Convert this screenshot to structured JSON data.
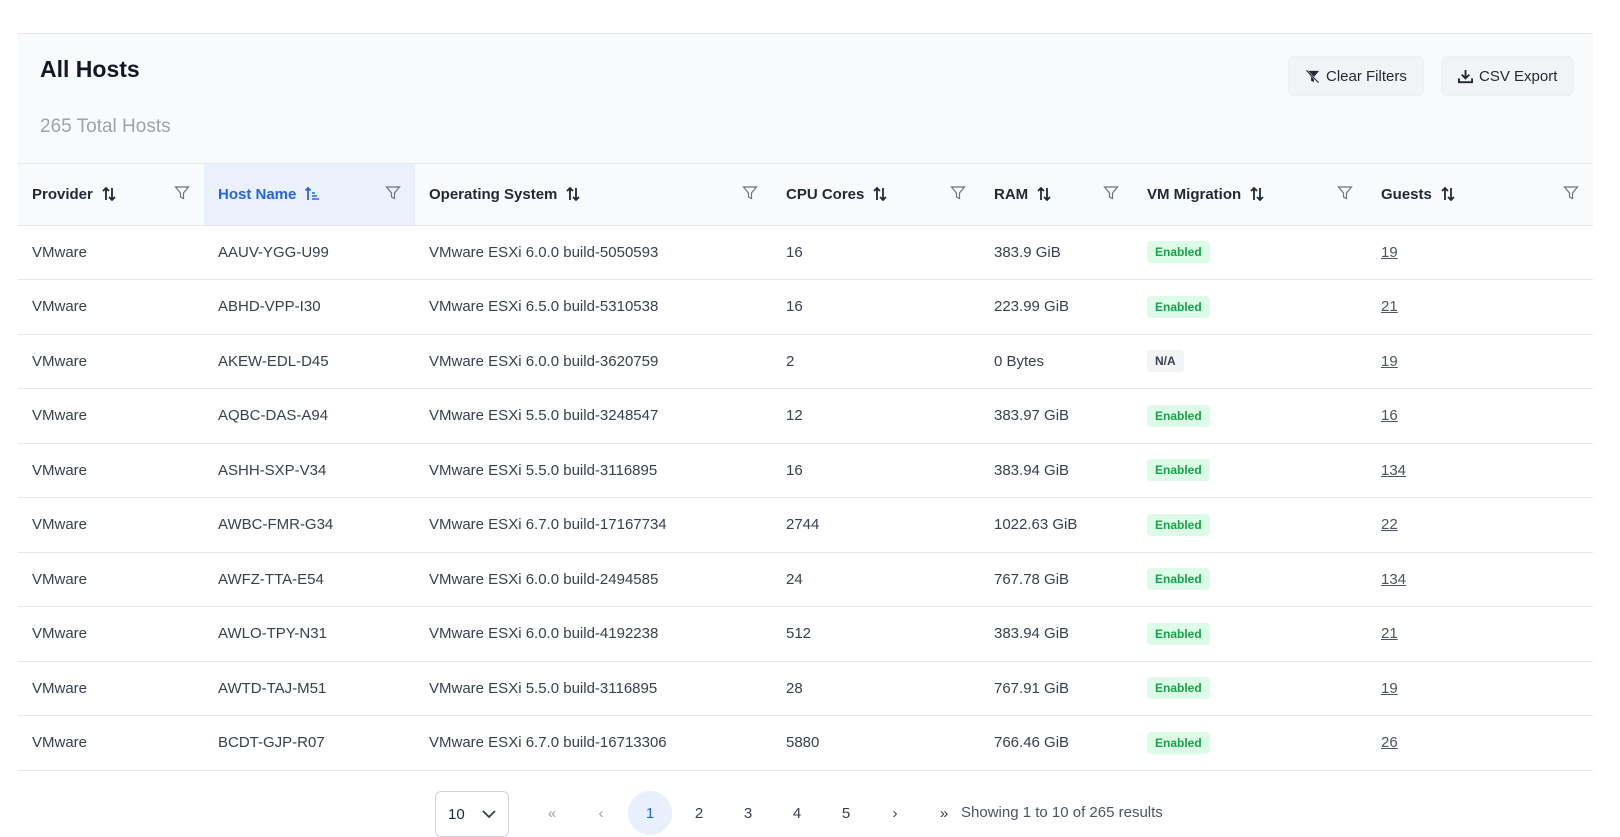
{
  "header": {
    "title": "All Hosts",
    "subtitle": "265 Total Hosts",
    "clear_filters_label": "Clear Filters",
    "csv_export_label": "CSV Export"
  },
  "columns": [
    "Provider",
    "Host Name",
    "Operating System",
    "CPU Cores",
    "RAM",
    "VM Migration",
    "Guests"
  ],
  "rows": [
    {
      "provider": "VMware",
      "host": "AAUV-YGG-U99",
      "os": "VMware ESXi 6.0.0 build-5050593",
      "cpu": "16",
      "ram": "383.9 GiB",
      "migration": "Enabled",
      "guests": "19"
    },
    {
      "provider": "VMware",
      "host": "ABHD-VPP-I30",
      "os": "VMware ESXi 6.5.0 build-5310538",
      "cpu": "16",
      "ram": "223.99 GiB",
      "migration": "Enabled",
      "guests": "21"
    },
    {
      "provider": "VMware",
      "host": "AKEW-EDL-D45",
      "os": "VMware ESXi 6.0.0 build-3620759",
      "cpu": "2",
      "ram": "0 Bytes",
      "migration": "N/A",
      "guests": "19"
    },
    {
      "provider": "VMware",
      "host": "AQBC-DAS-A94",
      "os": "VMware ESXi 5.5.0 build-3248547",
      "cpu": "12",
      "ram": "383.97 GiB",
      "migration": "Enabled",
      "guests": "16"
    },
    {
      "provider": "VMware",
      "host": "ASHH-SXP-V34",
      "os": "VMware ESXi 5.5.0 build-3116895",
      "cpu": "16",
      "ram": "383.94 GiB",
      "migration": "Enabled",
      "guests": "134"
    },
    {
      "provider": "VMware",
      "host": "AWBC-FMR-G34",
      "os": "VMware ESXi 6.7.0 build-17167734",
      "cpu": "2744",
      "ram": "1022.63 GiB",
      "migration": "Enabled",
      "guests": "22"
    },
    {
      "provider": "VMware",
      "host": "AWFZ-TTA-E54",
      "os": "VMware ESXi 6.0.0 build-2494585",
      "cpu": "24",
      "ram": "767.78 GiB",
      "migration": "Enabled",
      "guests": "134"
    },
    {
      "provider": "VMware",
      "host": "AWLO-TPY-N31",
      "os": "VMware ESXi 6.0.0 build-4192238",
      "cpu": "512",
      "ram": "383.94 GiB",
      "migration": "Enabled",
      "guests": "21"
    },
    {
      "provider": "VMware",
      "host": "AWTD-TAJ-M51",
      "os": "VMware ESXi 5.5.0 build-3116895",
      "cpu": "28",
      "ram": "767.91 GiB",
      "migration": "Enabled",
      "guests": "19"
    },
    {
      "provider": "VMware",
      "host": "BCDT-GJP-R07",
      "os": "VMware ESXi 6.7.0 build-16713306",
      "cpu": "5880",
      "ram": "766.46 GiB",
      "migration": "Enabled",
      "guests": "26"
    }
  ],
  "pagination": {
    "page_size": "10",
    "first": "«",
    "prev": "‹",
    "pages": [
      "1",
      "2",
      "3",
      "4",
      "5"
    ],
    "next": "›",
    "last": "»",
    "showing": "Showing 1 to 10 of 265 results"
  },
  "colors": {
    "accent": "#2563eb",
    "enabled_bg": "#dcfce7",
    "enabled_text": "#16a34a"
  }
}
